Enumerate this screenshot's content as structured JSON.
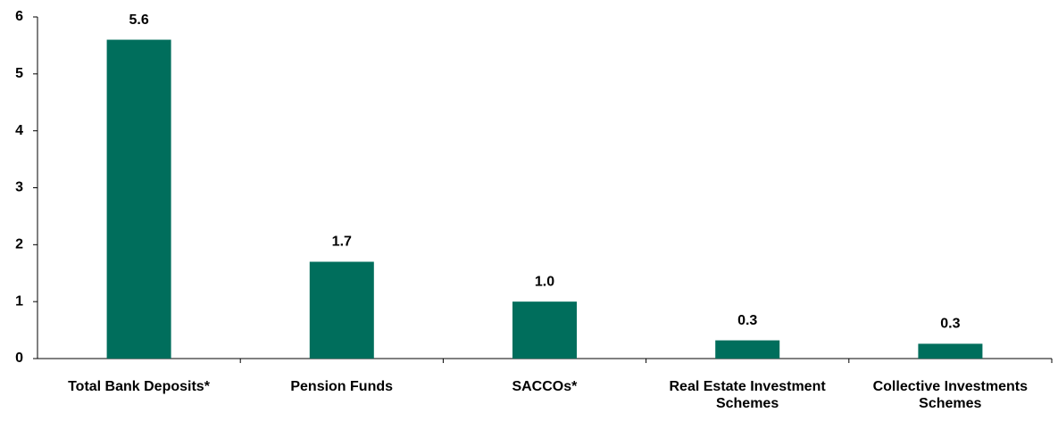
{
  "chart_data": {
    "type": "bar",
    "categories": [
      "Total Bank Deposits*",
      "Pension Funds",
      "SACCOs*",
      "Real Estate Investment Schemes",
      "Collective Investments Schemes"
    ],
    "values": [
      5.6,
      1.7,
      1.0,
      0.32,
      0.26
    ],
    "value_labels": [
      "5.6",
      "1.7",
      "1.0",
      "0.3",
      "0.3"
    ],
    "color": "#006e5c",
    "ylim": [
      0,
      6
    ],
    "yticks": [
      0,
      1,
      2,
      3,
      4,
      5,
      6
    ],
    "grid": false
  }
}
